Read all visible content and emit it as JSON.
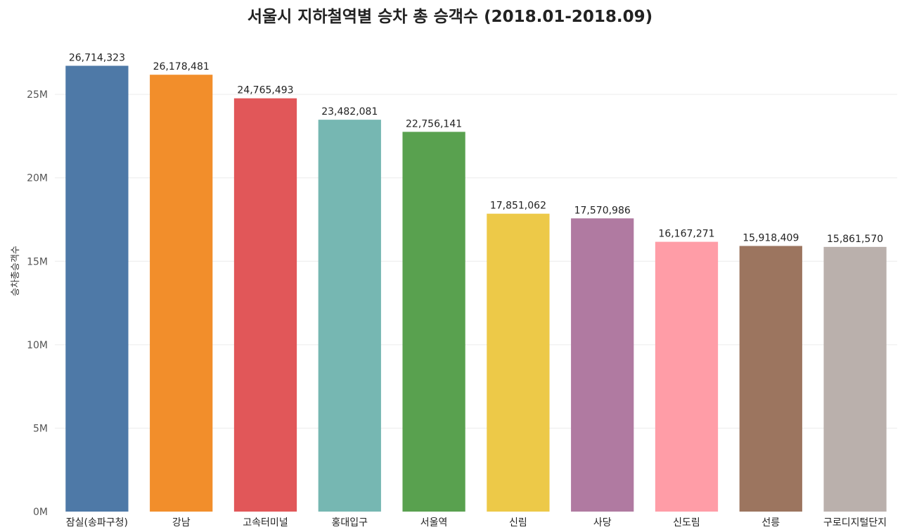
{
  "chart_data": {
    "type": "bar",
    "title": "서울시 지하철역별 승차 총 승객수 (2018.01-2018.09)",
    "xlabel": "",
    "ylabel": "승차총승객수",
    "ylim": [
      0,
      28000000
    ],
    "yticks": [
      0,
      5000000,
      10000000,
      15000000,
      20000000,
      25000000
    ],
    "ytick_labels": [
      "0M",
      "5M",
      "10M",
      "15M",
      "20M",
      "25M"
    ],
    "grid": true,
    "categories": [
      "잠실(송파구청)",
      "강남",
      "고속터미널",
      "홍대입구",
      "서울역",
      "신림",
      "사당",
      "신도림",
      "선릉",
      "구로디지털단지"
    ],
    "values": [
      26714323,
      26178481,
      24765493,
      23482081,
      22756141,
      17851062,
      17570986,
      16167271,
      15918409,
      15861570
    ],
    "value_labels": [
      "26,714,323",
      "26,178,481",
      "24,765,493",
      "23,482,081",
      "22,756,141",
      "17,851,062",
      "17,570,986",
      "16,167,271",
      "15,918,409",
      "15,861,570"
    ],
    "colors": [
      "#4e79a7",
      "#f28e2b",
      "#e15759",
      "#76b7b2",
      "#59a14f",
      "#edc948",
      "#b07aa1",
      "#ff9da7",
      "#9c755f",
      "#bab0ac"
    ]
  }
}
